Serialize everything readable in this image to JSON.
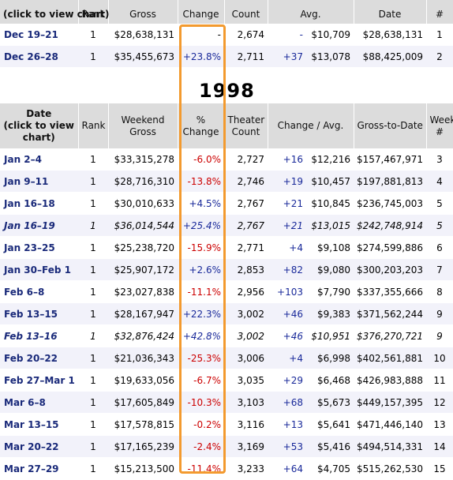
{
  "columns": [
    "Date\n(click to view\nchart)",
    "Rank",
    "Weekend\nGross",
    "%\nChange",
    "Theater\nCount",
    "Change / Avg.",
    "Gross-to-Date",
    "Week\n#"
  ],
  "top_header": [
    "(click to view chart)",
    "Rank",
    "Gross",
    "Change",
    "Count",
    "Avg.",
    "Date",
    "#"
  ],
  "top_rows": [
    {
      "date": "Dec 19–21",
      "rank": "1",
      "gross": "$28,638,131",
      "pct": "-",
      "count": "2,674",
      "chg": "-",
      "avg": "$10,709",
      "gtd": "$28,638,131",
      "week": "1"
    },
    {
      "date": "Dec 26–28",
      "rank": "1",
      "gross": "$35,455,673",
      "pct": "+23.8%",
      "count": "2,711",
      "chg": "+37",
      "avg": "$13,078",
      "gtd": "$88,425,009",
      "week": "2"
    }
  ],
  "year": "1998",
  "rows": [
    {
      "date": "Jan 2–4",
      "rank": "1",
      "gross": "$33,315,278",
      "pct": "-6.0%",
      "count": "2,727",
      "chg": "+16",
      "avg": "$12,216",
      "gtd": "$157,467,971",
      "week": "3"
    },
    {
      "date": "Jan 9–11",
      "rank": "1",
      "gross": "$28,716,310",
      "pct": "-13.8%",
      "count": "2,746",
      "chg": "+19",
      "avg": "$10,457",
      "gtd": "$197,881,813",
      "week": "4"
    },
    {
      "date": "Jan 16–18",
      "rank": "1",
      "gross": "$30,010,633",
      "pct": "+4.5%",
      "count": "2,767",
      "chg": "+21",
      "avg": "$10,845",
      "gtd": "$236,745,003",
      "week": "5"
    },
    {
      "date": "Jan 16–19",
      "rank": "1",
      "gross": "$36,014,544",
      "pct": "+25.4%",
      "count": "2,767",
      "chg": "+21",
      "avg": "$13,015",
      "gtd": "$242,748,914",
      "week": "5",
      "italic": true
    },
    {
      "date": "Jan 23–25",
      "rank": "1",
      "gross": "$25,238,720",
      "pct": "-15.9%",
      "count": "2,771",
      "chg": "+4",
      "avg": "$9,108",
      "gtd": "$274,599,886",
      "week": "6"
    },
    {
      "date": "Jan 30–Feb 1",
      "rank": "1",
      "gross": "$25,907,172",
      "pct": "+2.6%",
      "count": "2,853",
      "chg": "+82",
      "avg": "$9,080",
      "gtd": "$300,203,203",
      "week": "7"
    },
    {
      "date": "Feb 6–8",
      "rank": "1",
      "gross": "$23,027,838",
      "pct": "-11.1%",
      "count": "2,956",
      "chg": "+103",
      "avg": "$7,790",
      "gtd": "$337,355,666",
      "week": "8"
    },
    {
      "date": "Feb 13–15",
      "rank": "1",
      "gross": "$28,167,947",
      "pct": "+22.3%",
      "count": "3,002",
      "chg": "+46",
      "avg": "$9,383",
      "gtd": "$371,562,244",
      "week": "9"
    },
    {
      "date": "Feb 13–16",
      "rank": "1",
      "gross": "$32,876,424",
      "pct": "+42.8%",
      "count": "3,002",
      "chg": "+46",
      "avg": "$10,951",
      "gtd": "$376,270,721",
      "week": "9",
      "italic": true
    },
    {
      "date": "Feb 20–22",
      "rank": "1",
      "gross": "$21,036,343",
      "pct": "-25.3%",
      "count": "3,006",
      "chg": "+4",
      "avg": "$6,998",
      "gtd": "$402,561,881",
      "week": "10"
    },
    {
      "date": "Feb 27–Mar 1",
      "rank": "1",
      "gross": "$19,633,056",
      "pct": "-6.7%",
      "count": "3,035",
      "chg": "+29",
      "avg": "$6,468",
      "gtd": "$426,983,888",
      "week": "11"
    },
    {
      "date": "Mar 6–8",
      "rank": "1",
      "gross": "$17,605,849",
      "pct": "-10.3%",
      "count": "3,103",
      "chg": "+68",
      "avg": "$5,673",
      "gtd": "$449,157,395",
      "week": "12"
    },
    {
      "date": "Mar 13–15",
      "rank": "1",
      "gross": "$17,578,815",
      "pct": "-0.2%",
      "count": "3,116",
      "chg": "+13",
      "avg": "$5,641",
      "gtd": "$471,446,140",
      "week": "13"
    },
    {
      "date": "Mar 20–22",
      "rank": "1",
      "gross": "$17,165,239",
      "pct": "-2.4%",
      "count": "3,169",
      "chg": "+53",
      "avg": "$5,416",
      "gtd": "$494,514,331",
      "week": "14"
    },
    {
      "date": "Mar 27–29",
      "rank": "1",
      "gross": "$15,213,500",
      "pct": "-11.4%",
      "count": "3,233",
      "chg": "+64",
      "avg": "$4,705",
      "gtd": "$515,262,530",
      "week": "15"
    }
  ],
  "colors": {
    "header_bg": "#dcdcdc",
    "date_link": "#1a2a7a",
    "negative": "#cc0000",
    "positive": "#1a2a9a",
    "highlight": "#f39a2e"
  }
}
